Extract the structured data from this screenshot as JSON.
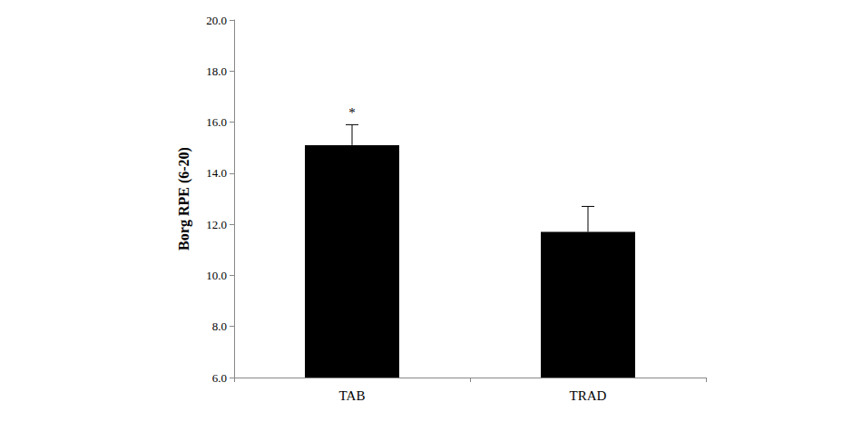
{
  "chart_data": {
    "type": "bar",
    "categories": [
      "TAB",
      "TRAD"
    ],
    "values": [
      15.1,
      11.7
    ],
    "errors": [
      0.8,
      1.0
    ],
    "color": "#000000",
    "y_label": "Borg RPE (6-20)",
    "ylim": [
      6,
      20
    ],
    "yticks": [
      {
        "value": 6,
        "label": "6.0"
      },
      {
        "value": 8,
        "label": "8.0"
      },
      {
        "value": 10,
        "label": "10.0"
      },
      {
        "value": 12,
        "label": "12.0"
      },
      {
        "value": 14,
        "label": "14.0"
      },
      {
        "value": 16,
        "label": "16.0"
      },
      {
        "value": 18,
        "label": "18.0"
      },
      {
        "value": 20,
        "label": "20.0"
      }
    ],
    "grid": false,
    "annotations": [
      {
        "category": "TAB",
        "text": "*"
      }
    ]
  }
}
